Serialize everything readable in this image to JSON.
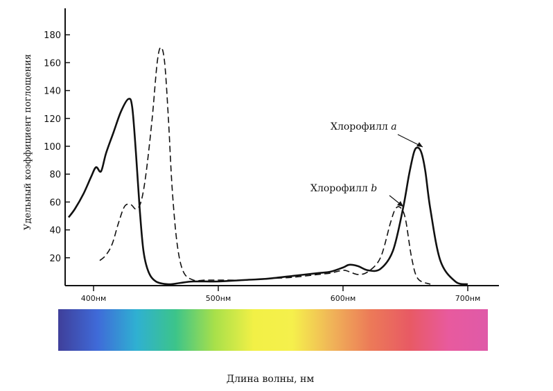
{
  "chart_data": {
    "type": "line",
    "xlabel": "Длина волны, нм",
    "ylabel": "Удельный коэффициент поглощения",
    "xlim": [
      380,
      720
    ],
    "ylim": [
      0,
      190
    ],
    "y_ticks": [
      20,
      40,
      60,
      80,
      100,
      120,
      140,
      160,
      180
    ],
    "x_ticks": [
      {
        "value": 400,
        "label": "400нм"
      },
      {
        "value": 500,
        "label": "500нм"
      },
      {
        "value": 600,
        "label": "600нм"
      },
      {
        "value": 700,
        "label": "700нм"
      }
    ],
    "grid": false,
    "legend": "none",
    "series": [
      {
        "name": "Хлорофилл a",
        "style": "solid",
        "x": [
          380,
          385,
          392,
          398,
          402,
          406,
          410,
          416,
          422,
          428,
          431,
          434,
          437,
          440,
          444,
          450,
          460,
          470,
          480,
          500,
          520,
          540,
          560,
          580,
          590,
          600,
          605,
          612,
          620,
          630,
          640,
          648,
          653,
          657,
          660,
          663,
          666,
          670,
          678,
          690,
          700
        ],
        "y": [
          49,
          55,
          66,
          78,
          85,
          82,
          95,
          110,
          125,
          134,
          128,
          95,
          55,
          25,
          10,
          3,
          1,
          2,
          3,
          3,
          4,
          5,
          7,
          9,
          10,
          13,
          15,
          14,
          11,
          12,
          25,
          55,
          80,
          96,
          99,
          95,
          82,
          55,
          18,
          3,
          1
        ]
      },
      {
        "name": "Хлорофилл b",
        "style": "dashed",
        "x": [
          405,
          410,
          415,
          420,
          425,
          430,
          434,
          438,
          442,
          447,
          451,
          454,
          457,
          460,
          463,
          467,
          472,
          480,
          490,
          500,
          520,
          540,
          560,
          580,
          590,
          600,
          605,
          612,
          620,
          630,
          638,
          642,
          646,
          650,
          655,
          660,
          670
        ],
        "y": [
          18,
          22,
          30,
          45,
          57,
          58,
          55,
          60,
          80,
          120,
          160,
          171,
          160,
          120,
          70,
          30,
          10,
          4,
          4,
          4,
          4,
          5,
          6,
          8,
          9,
          11,
          10,
          8,
          10,
          20,
          45,
          55,
          56,
          48,
          20,
          5,
          1
        ]
      }
    ],
    "annotations": [
      {
        "text": "Хлорофилл a",
        "points_to_x": 663,
        "points_to_y": 99
      },
      {
        "text": "Хлорофилл b",
        "points_to_x": 644,
        "points_to_y": 56
      }
    ],
    "spectrum_colors": [
      "#3f3f9a",
      "#3f6ad8",
      "#2fb0d2",
      "#3cc48a",
      "#a8e04a",
      "#f2f046",
      "#f5f04c",
      "#f0b458",
      "#ec7a58",
      "#e85a64",
      "#e85a9e",
      "#df5aa8"
    ]
  },
  "annotation_a_main": "Хлорофилл ",
  "annotation_a_letter": "a",
  "annotation_b_main": "Хлорофилл ",
  "annotation_b_letter": "b"
}
